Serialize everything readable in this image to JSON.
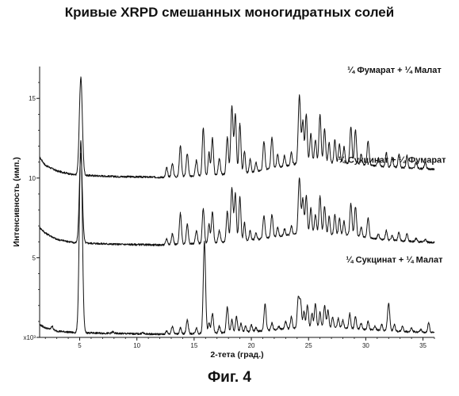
{
  "title": "Кривые XRPD смешанных моногидратных солей",
  "caption": "Фиг. 4",
  "chart_data": {
    "type": "line",
    "title": "Кривые XRPD смешанных моногидратных солей",
    "xlabel": "2-тета (град.)",
    "ylabel": "Интенсивность (имп.)",
    "xlim": [
      1.5,
      36
    ],
    "ylim": [
      0,
      17
    ],
    "x_ticks": [
      5,
      10,
      15,
      20,
      25,
      30,
      35
    ],
    "y_ticks": [
      {
        "value": 0,
        "label": "x10³"
      },
      {
        "value": 5,
        "label": "5"
      },
      {
        "value": 10,
        "label": "10"
      },
      {
        "value": 15,
        "label": "15"
      }
    ],
    "grid": false,
    "legend": "inline labels above each trace",
    "series": [
      {
        "name": "¼ Фумарат + ¼ Малат",
        "baseline": [
          [
            1.5,
            11.3
          ],
          [
            2.0,
            10.8
          ],
          [
            3.0,
            10.45
          ],
          [
            4.5,
            10.2
          ],
          [
            8,
            10.1
          ],
          [
            12,
            10.05
          ],
          [
            16,
            10.15
          ],
          [
            20,
            10.35
          ],
          [
            24,
            10.9
          ],
          [
            28,
            10.95
          ],
          [
            32,
            10.7
          ],
          [
            36,
            10.55
          ]
        ],
        "peaks": [
          [
            5.1,
            16.3,
            0.13
          ],
          [
            12.6,
            10.65,
            0.08
          ],
          [
            13.1,
            10.9,
            0.09
          ],
          [
            13.8,
            12.05,
            0.09
          ],
          [
            14.4,
            11.55,
            0.09
          ],
          [
            15.2,
            11.1,
            0.09
          ],
          [
            15.8,
            13.15,
            0.09
          ],
          [
            16.3,
            11.6,
            0.08
          ],
          [
            16.6,
            12.5,
            0.09
          ],
          [
            17.2,
            11.2,
            0.09
          ],
          [
            17.9,
            12.55,
            0.09
          ],
          [
            18.3,
            14.5,
            0.1
          ],
          [
            18.6,
            14.0,
            0.09
          ],
          [
            19.0,
            13.4,
            0.09
          ],
          [
            19.4,
            11.7,
            0.08
          ],
          [
            19.9,
            11.2,
            0.08
          ],
          [
            20.4,
            11.0,
            0.08
          ],
          [
            21.1,
            12.3,
            0.09
          ],
          [
            21.8,
            12.55,
            0.09
          ],
          [
            22.3,
            11.5,
            0.08
          ],
          [
            22.9,
            11.4,
            0.08
          ],
          [
            23.5,
            11.6,
            0.08
          ],
          [
            24.2,
            15.2,
            0.1
          ],
          [
            24.5,
            13.55,
            0.09
          ],
          [
            24.8,
            14.0,
            0.09
          ],
          [
            25.2,
            12.8,
            0.09
          ],
          [
            25.6,
            12.4,
            0.09
          ],
          [
            26.0,
            14.0,
            0.09
          ],
          [
            26.4,
            13.1,
            0.09
          ],
          [
            26.8,
            12.25,
            0.08
          ],
          [
            27.3,
            12.4,
            0.08
          ],
          [
            27.7,
            12.15,
            0.08
          ],
          [
            28.1,
            11.95,
            0.08
          ],
          [
            28.7,
            13.2,
            0.09
          ],
          [
            29.1,
            13.0,
            0.09
          ],
          [
            29.6,
            11.5,
            0.08
          ],
          [
            30.2,
            12.3,
            0.09
          ],
          [
            31.1,
            11.3,
            0.08
          ],
          [
            31.8,
            11.6,
            0.08
          ],
          [
            32.3,
            11.3,
            0.08
          ],
          [
            32.9,
            11.5,
            0.08
          ],
          [
            33.6,
            11.4,
            0.08
          ],
          [
            34.4,
            11.0,
            0.08
          ],
          [
            35.2,
            11.0,
            0.08
          ]
        ]
      },
      {
        "name": "¼ Сукцинат + ¼ Фумарат",
        "baseline": [
          [
            1.5,
            6.9
          ],
          [
            2.0,
            6.55
          ],
          [
            3.0,
            6.15
          ],
          [
            4.5,
            5.95
          ],
          [
            8,
            5.85
          ],
          [
            12,
            5.8
          ],
          [
            16,
            5.9
          ],
          [
            20,
            6.1
          ],
          [
            24,
            6.5
          ],
          [
            28,
            6.45
          ],
          [
            32,
            6.1
          ],
          [
            36,
            5.95
          ]
        ],
        "peaks": [
          [
            5.1,
            11.5,
            0.13
          ],
          [
            12.6,
            6.2,
            0.08
          ],
          [
            13.1,
            6.5,
            0.09
          ],
          [
            13.8,
            7.8,
            0.09
          ],
          [
            14.4,
            7.1,
            0.09
          ],
          [
            15.2,
            6.7,
            0.09
          ],
          [
            15.8,
            8.1,
            0.09
          ],
          [
            16.3,
            7.1,
            0.08
          ],
          [
            16.6,
            7.85,
            0.09
          ],
          [
            17.2,
            6.7,
            0.09
          ],
          [
            17.9,
            7.9,
            0.09
          ],
          [
            18.3,
            9.35,
            0.1
          ],
          [
            18.6,
            9.0,
            0.09
          ],
          [
            19.0,
            8.8,
            0.09
          ],
          [
            19.4,
            7.2,
            0.08
          ],
          [
            19.9,
            6.7,
            0.08
          ],
          [
            20.4,
            6.55,
            0.08
          ],
          [
            21.1,
            7.6,
            0.09
          ],
          [
            21.8,
            7.7,
            0.09
          ],
          [
            22.3,
            6.9,
            0.08
          ],
          [
            22.9,
            6.8,
            0.08
          ],
          [
            23.5,
            7.0,
            0.08
          ],
          [
            24.2,
            10.0,
            0.1
          ],
          [
            24.5,
            8.7,
            0.09
          ],
          [
            24.8,
            8.9,
            0.09
          ],
          [
            25.2,
            8.1,
            0.09
          ],
          [
            25.6,
            7.7,
            0.09
          ],
          [
            26.0,
            8.85,
            0.09
          ],
          [
            26.4,
            8.2,
            0.09
          ],
          [
            26.8,
            7.6,
            0.08
          ],
          [
            27.3,
            7.7,
            0.08
          ],
          [
            27.7,
            7.5,
            0.08
          ],
          [
            28.1,
            7.3,
            0.08
          ],
          [
            28.7,
            8.4,
            0.09
          ],
          [
            29.1,
            8.2,
            0.09
          ],
          [
            29.6,
            6.9,
            0.08
          ],
          [
            30.2,
            7.5,
            0.09
          ],
          [
            31.1,
            6.5,
            0.08
          ],
          [
            31.8,
            6.7,
            0.08
          ],
          [
            32.3,
            6.4,
            0.08
          ],
          [
            32.9,
            6.6,
            0.08
          ],
          [
            33.6,
            6.5,
            0.08
          ],
          [
            34.4,
            6.2,
            0.08
          ],
          [
            35.2,
            6.15,
            0.08
          ]
        ]
      },
      {
        "name": "¼ Сукцинат + ¼ Малат",
        "baseline": [
          [
            1.5,
            0.8
          ],
          [
            2.0,
            0.6
          ],
          [
            3.0,
            0.4
          ],
          [
            4.5,
            0.3
          ],
          [
            8,
            0.25
          ],
          [
            12,
            0.2
          ],
          [
            16,
            0.25
          ],
          [
            20,
            0.35
          ],
          [
            24,
            0.6
          ],
          [
            28,
            0.6
          ],
          [
            32,
            0.4
          ],
          [
            36,
            0.3
          ]
        ],
        "peaks": [
          [
            2.6,
            0.7,
            0.08
          ],
          [
            5.1,
            12.3,
            0.13
          ],
          [
            7.9,
            0.35,
            0.08
          ],
          [
            10.5,
            0.3,
            0.08
          ],
          [
            12.6,
            0.4,
            0.08
          ],
          [
            13.1,
            0.7,
            0.09
          ],
          [
            13.8,
            0.6,
            0.08
          ],
          [
            14.4,
            1.1,
            0.09
          ],
          [
            15.2,
            0.6,
            0.08
          ],
          [
            15.9,
            6.0,
            0.1
          ],
          [
            16.3,
            0.9,
            0.08
          ],
          [
            16.6,
            1.5,
            0.09
          ],
          [
            17.2,
            0.7,
            0.08
          ],
          [
            17.9,
            1.9,
            0.09
          ],
          [
            18.3,
            1.1,
            0.08
          ],
          [
            18.7,
            1.3,
            0.09
          ],
          [
            19.1,
            0.9,
            0.08
          ],
          [
            19.5,
            0.7,
            0.08
          ],
          [
            20.0,
            0.8,
            0.08
          ],
          [
            20.4,
            0.6,
            0.08
          ],
          [
            21.2,
            2.1,
            0.09
          ],
          [
            21.8,
            0.9,
            0.08
          ],
          [
            22.4,
            0.7,
            0.08
          ],
          [
            23.0,
            1.0,
            0.08
          ],
          [
            23.5,
            1.3,
            0.08
          ],
          [
            24.1,
            2.4,
            0.09
          ],
          [
            24.3,
            2.2,
            0.09
          ],
          [
            24.6,
            1.6,
            0.08
          ],
          [
            24.9,
            2.0,
            0.09
          ],
          [
            25.3,
            1.5,
            0.08
          ],
          [
            25.6,
            2.1,
            0.09
          ],
          [
            26.0,
            1.6,
            0.08
          ],
          [
            26.4,
            2.0,
            0.09
          ],
          [
            26.7,
            1.7,
            0.08
          ],
          [
            27.1,
            1.3,
            0.08
          ],
          [
            27.6,
            1.2,
            0.08
          ],
          [
            28.0,
            1.1,
            0.08
          ],
          [
            28.6,
            1.5,
            0.08
          ],
          [
            29.1,
            1.3,
            0.08
          ],
          [
            29.6,
            0.9,
            0.08
          ],
          [
            30.2,
            1.0,
            0.08
          ],
          [
            30.8,
            0.7,
            0.08
          ],
          [
            31.4,
            0.8,
            0.08
          ],
          [
            32.0,
            2.1,
            0.1
          ],
          [
            32.5,
            0.8,
            0.08
          ],
          [
            33.2,
            0.7,
            0.08
          ],
          [
            34.0,
            0.6,
            0.08
          ],
          [
            34.8,
            0.5,
            0.08
          ],
          [
            35.5,
            0.9,
            0.08
          ]
        ]
      }
    ]
  }
}
